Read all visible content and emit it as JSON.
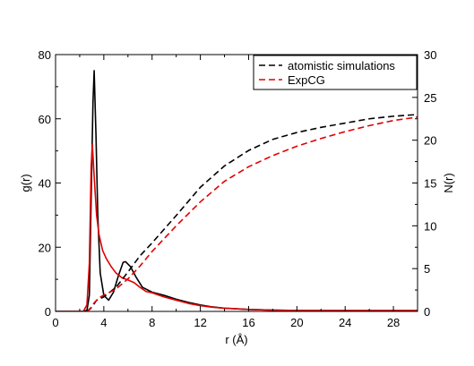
{
  "chart_data": {
    "type": "line",
    "xlabel": "r (Å)",
    "ylabel_left": "g(r)",
    "ylabel_right": "N(r)",
    "xlim": [
      0,
      30
    ],
    "ylim_left": [
      0,
      80
    ],
    "ylim_right": [
      0,
      30
    ],
    "x_ticks": [
      0,
      4,
      8,
      12,
      16,
      20,
      24,
      28
    ],
    "y_left_ticks": [
      0,
      20,
      40,
      60,
      80
    ],
    "y_right_ticks": [
      0,
      5,
      10,
      15,
      20,
      25,
      30
    ],
    "grid": false,
    "legend_position": "top-right",
    "legend": [
      "atomistic simulations",
      "ExpCG"
    ],
    "colors": {
      "atomistic": "#000000",
      "expcg": "#e00000"
    },
    "series": [
      {
        "name": "atomistic simulations",
        "axis": "left",
        "style": "solid",
        "color": "#000000",
        "points": [
          [
            0,
            0
          ],
          [
            2.3,
            0
          ],
          [
            2.6,
            0.3
          ],
          [
            2.8,
            5
          ],
          [
            2.95,
            35
          ],
          [
            3.1,
            65
          ],
          [
            3.2,
            75
          ],
          [
            3.35,
            55
          ],
          [
            3.5,
            30
          ],
          [
            3.7,
            12
          ],
          [
            4.0,
            5
          ],
          [
            4.4,
            3.5
          ],
          [
            4.8,
            6
          ],
          [
            5.2,
            11
          ],
          [
            5.6,
            15.3
          ],
          [
            5.8,
            15.5
          ],
          [
            6.2,
            14
          ],
          [
            6.7,
            10.5
          ],
          [
            7.2,
            7.5
          ],
          [
            8,
            6
          ],
          [
            9,
            5
          ],
          [
            10,
            3.8
          ],
          [
            11,
            2.8
          ],
          [
            12,
            2
          ],
          [
            13,
            1.4
          ],
          [
            14,
            1
          ],
          [
            16,
            0.6
          ],
          [
            18,
            0.4
          ],
          [
            20,
            0.3
          ],
          [
            24,
            0.25
          ],
          [
            28,
            0.25
          ],
          [
            30,
            0.25
          ]
        ]
      },
      {
        "name": "ExpCG",
        "axis": "left",
        "style": "solid",
        "color": "#e00000",
        "points": [
          [
            0,
            0
          ],
          [
            2.3,
            0
          ],
          [
            2.6,
            2
          ],
          [
            2.8,
            15
          ],
          [
            2.95,
            45
          ],
          [
            3.05,
            52
          ],
          [
            3.2,
            42
          ],
          [
            3.4,
            30
          ],
          [
            3.6,
            24
          ],
          [
            3.9,
            19
          ],
          [
            4.2,
            16.5
          ],
          [
            4.6,
            14
          ],
          [
            5,
            12
          ],
          [
            5.5,
            10.5
          ],
          [
            6,
            9.8
          ],
          [
            6.5,
            9
          ],
          [
            7,
            7.5
          ],
          [
            7.5,
            6.2
          ],
          [
            8,
            5.8
          ],
          [
            9,
            4.5
          ],
          [
            10,
            3.5
          ],
          [
            11,
            2.5
          ],
          [
            12,
            1.8
          ],
          [
            13,
            1.3
          ],
          [
            14,
            1
          ],
          [
            16,
            0.6
          ],
          [
            18,
            0.4
          ],
          [
            20,
            0.3
          ],
          [
            24,
            0.25
          ],
          [
            28,
            0.25
          ],
          [
            30,
            0.25
          ]
        ]
      },
      {
        "name": "atomistic simulations",
        "axis": "right",
        "style": "dashed",
        "color": "#000000",
        "points": [
          [
            2.6,
            0
          ],
          [
            3.0,
            0.5
          ],
          [
            3.4,
            1.3
          ],
          [
            4,
            1.7
          ],
          [
            5,
            2.8
          ],
          [
            6,
            4.6
          ],
          [
            7,
            6.5
          ],
          [
            8,
            8
          ],
          [
            10,
            11.2
          ],
          [
            12,
            14.5
          ],
          [
            14,
            17
          ],
          [
            16,
            18.8
          ],
          [
            18,
            20.1
          ],
          [
            20,
            20.9
          ],
          [
            22,
            21.5
          ],
          [
            24,
            22
          ],
          [
            26,
            22.5
          ],
          [
            28,
            22.8
          ],
          [
            30,
            23
          ]
        ]
      },
      {
        "name": "ExpCG",
        "axis": "right",
        "style": "dashed",
        "color": "#e00000",
        "points": [
          [
            2.6,
            0
          ],
          [
            2.9,
            0.3
          ],
          [
            3.2,
            1.0
          ],
          [
            3.6,
            1.6
          ],
          [
            4,
            1.9
          ],
          [
            5,
            2.6
          ],
          [
            6,
            3.8
          ],
          [
            7,
            5.3
          ],
          [
            8,
            7
          ],
          [
            10,
            10
          ],
          [
            12,
            12.8
          ],
          [
            14,
            15.2
          ],
          [
            16,
            16.9
          ],
          [
            18,
            18.2
          ],
          [
            20,
            19.3
          ],
          [
            22,
            20.2
          ],
          [
            24,
            21
          ],
          [
            26,
            21.7
          ],
          [
            28,
            22.3
          ],
          [
            30,
            22.7
          ]
        ]
      }
    ]
  }
}
